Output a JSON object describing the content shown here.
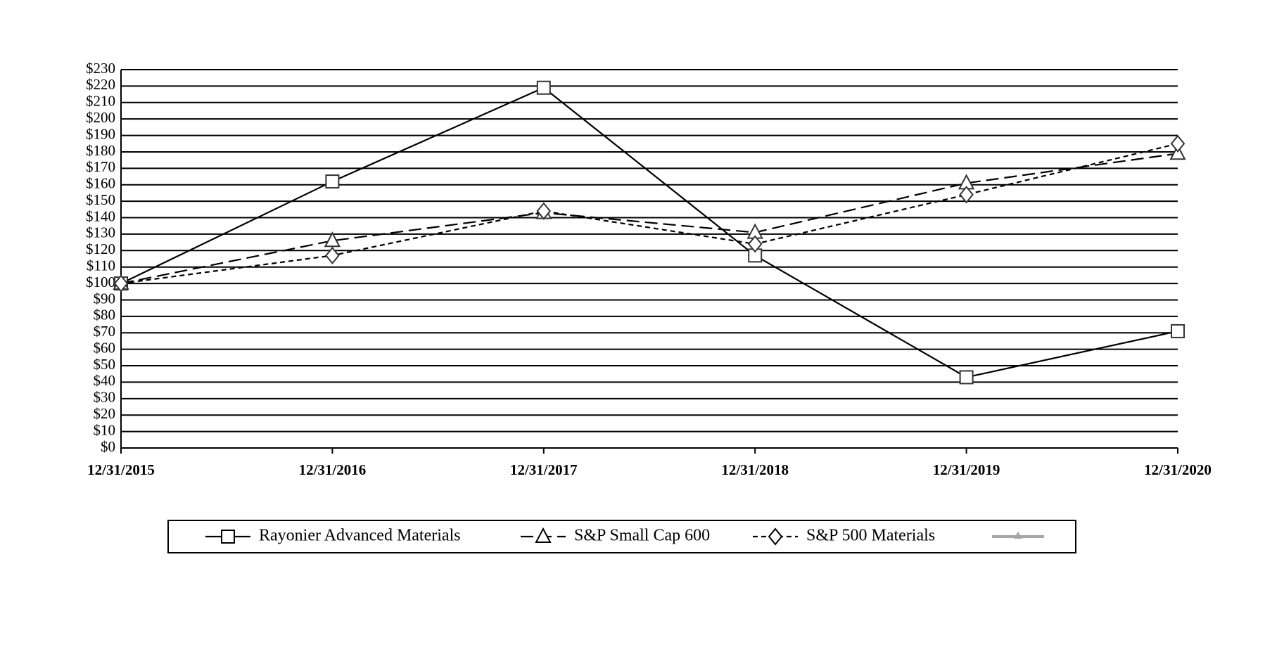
{
  "chart_data": {
    "type": "line",
    "categories": [
      "12/31/2015",
      "12/31/2016",
      "12/31/2017",
      "12/31/2018",
      "12/31/2019",
      "12/31/2020"
    ],
    "series": [
      {
        "name": "Rayonier Advanced Materials",
        "color": "#000000",
        "dash": "none",
        "marker": "square",
        "values": [
          100,
          162,
          219,
          117,
          43,
          71
        ]
      },
      {
        "name": "S&P Small Cap 600",
        "color": "#000000",
        "dash": "18,8",
        "marker": "triangle",
        "values": [
          100,
          126,
          143,
          131,
          161,
          179
        ]
      },
      {
        "name": "S&P 500 Materials",
        "color": "#000000",
        "dash": "7,5",
        "marker": "diamond",
        "values": [
          100,
          117,
          144,
          124,
          154,
          185
        ]
      }
    ],
    "ylim": [
      0,
      230
    ],
    "yticks": [
      {
        "value": 0,
        "label": "$0"
      },
      {
        "value": 10,
        "label": "$10"
      },
      {
        "value": 20,
        "label": "$20"
      },
      {
        "value": 30,
        "label": "$30"
      },
      {
        "value": 40,
        "label": "$40"
      },
      {
        "value": 50,
        "label": "$50"
      },
      {
        "value": 60,
        "label": "$60"
      },
      {
        "value": 70,
        "label": "$70"
      },
      {
        "value": 80,
        "label": "$80"
      },
      {
        "value": 90,
        "label": "$90"
      },
      {
        "value": 100,
        "label": "$100"
      },
      {
        "value": 110,
        "label": "$110"
      },
      {
        "value": 120,
        "label": "$120"
      },
      {
        "value": 130,
        "label": "$130"
      },
      {
        "value": 140,
        "label": "$140"
      },
      {
        "value": 150,
        "label": "$150"
      },
      {
        "value": 160,
        "label": "$160"
      },
      {
        "value": 170,
        "label": "$170"
      },
      {
        "value": 180,
        "label": "$180"
      },
      {
        "value": 190,
        "label": "$190"
      },
      {
        "value": 200,
        "label": "$200"
      },
      {
        "value": 210,
        "label": "$210"
      },
      {
        "value": 220,
        "label": "$220"
      },
      {
        "value": 230,
        "label": "$230"
      }
    ],
    "grid": true
  }
}
